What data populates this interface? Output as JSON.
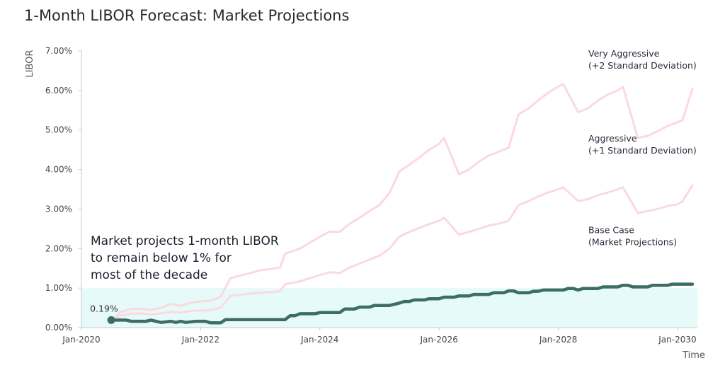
{
  "title": "1-Month LIBOR Forecast: Market Projections",
  "chart_data": {
    "type": "line",
    "title": "1-Month LIBOR Forecast: Market Projections",
    "xlabel": "Time",
    "ylabel": "LIBOR",
    "xlim": [
      "2020-01",
      "2030-05"
    ],
    "ylim": [
      0,
      7
    ],
    "y_ticks": [
      "0.00%",
      "1.00%",
      "2.00%",
      "3.00%",
      "4.00%",
      "5.00%",
      "6.00%",
      "7.00%"
    ],
    "x_ticks": [
      {
        "label": "Jan-2020",
        "date": "2020-01"
      },
      {
        "label": "Jan-2022",
        "date": "2022-01"
      },
      {
        "label": "Jan-2024",
        "date": "2024-01"
      },
      {
        "label": "Jan-2026",
        "date": "2026-01"
      },
      {
        "label": "Jan-2028",
        "date": "2028-01"
      },
      {
        "label": "Jan-2030",
        "date": "2030-01"
      }
    ],
    "shaded_band": {
      "from": 0,
      "to": 1,
      "color": "#e6fafa"
    },
    "grid": false,
    "series": [
      {
        "name": "Very Aggressive (+2 Standard Deviation)",
        "color": "#fadadd",
        "points": [
          [
            "2020-07",
            0.19
          ],
          [
            "2020-09",
            0.4
          ],
          [
            "2020-11",
            0.47
          ],
          [
            "2021-01",
            0.48
          ],
          [
            "2021-03",
            0.45
          ],
          [
            "2021-05",
            0.5
          ],
          [
            "2021-07",
            0.6
          ],
          [
            "2021-09",
            0.55
          ],
          [
            "2021-11",
            0.63
          ],
          [
            "2022-01",
            0.66
          ],
          [
            "2022-03",
            0.68
          ],
          [
            "2022-05",
            0.78
          ],
          [
            "2022-07",
            1.25
          ],
          [
            "2022-09",
            1.32
          ],
          [
            "2022-11",
            1.38
          ],
          [
            "2023-01",
            1.45
          ],
          [
            "2023-03",
            1.48
          ],
          [
            "2023-05",
            1.52
          ],
          [
            "2023-06",
            1.87
          ],
          [
            "2023-09",
            2.0
          ],
          [
            "2023-11",
            2.15
          ],
          [
            "2024-01",
            2.3
          ],
          [
            "2024-03",
            2.43
          ],
          [
            "2024-05",
            2.42
          ],
          [
            "2024-07",
            2.63
          ],
          [
            "2024-09",
            2.78
          ],
          [
            "2024-11",
            2.95
          ],
          [
            "2025-01",
            3.1
          ],
          [
            "2025-03",
            3.4
          ],
          [
            "2025-05",
            3.95
          ],
          [
            "2025-07",
            4.12
          ],
          [
            "2025-09",
            4.3
          ],
          [
            "2025-11",
            4.5
          ],
          [
            "2026-01",
            4.65
          ],
          [
            "2026-02",
            4.8
          ],
          [
            "2026-05",
            3.88
          ],
          [
            "2026-07",
            4.0
          ],
          [
            "2026-09",
            4.2
          ],
          [
            "2026-11",
            4.35
          ],
          [
            "2027-01",
            4.45
          ],
          [
            "2027-03",
            4.55
          ],
          [
            "2027-05",
            5.4
          ],
          [
            "2027-07",
            5.55
          ],
          [
            "2027-09",
            5.75
          ],
          [
            "2027-11",
            5.95
          ],
          [
            "2028-01",
            6.1
          ],
          [
            "2028-02",
            6.16
          ],
          [
            "2028-05",
            5.45
          ],
          [
            "2028-07",
            5.55
          ],
          [
            "2028-09",
            5.75
          ],
          [
            "2028-11",
            5.9
          ],
          [
            "2029-01",
            6.0
          ],
          [
            "2029-02",
            6.1
          ],
          [
            "2029-05",
            4.8
          ],
          [
            "2029-07",
            4.85
          ],
          [
            "2029-09",
            4.97
          ],
          [
            "2029-11",
            5.1
          ],
          [
            "2030-01",
            5.2
          ],
          [
            "2030-02",
            5.25
          ],
          [
            "2030-04",
            6.05
          ]
        ]
      },
      {
        "name": "Aggressive (+1 Standard Deviation)",
        "color": "#fadadd",
        "points": [
          [
            "2020-07",
            0.19
          ],
          [
            "2020-09",
            0.3
          ],
          [
            "2020-11",
            0.35
          ],
          [
            "2021-01",
            0.36
          ],
          [
            "2021-03",
            0.33
          ],
          [
            "2021-05",
            0.36
          ],
          [
            "2021-07",
            0.4
          ],
          [
            "2021-09",
            0.38
          ],
          [
            "2021-11",
            0.42
          ],
          [
            "2022-01",
            0.43
          ],
          [
            "2022-03",
            0.44
          ],
          [
            "2022-05",
            0.5
          ],
          [
            "2022-07",
            0.8
          ],
          [
            "2022-09",
            0.83
          ],
          [
            "2022-11",
            0.86
          ],
          [
            "2023-01",
            0.88
          ],
          [
            "2023-03",
            0.9
          ],
          [
            "2023-05",
            0.92
          ],
          [
            "2023-06",
            1.1
          ],
          [
            "2023-09",
            1.17
          ],
          [
            "2023-11",
            1.25
          ],
          [
            "2024-01",
            1.33
          ],
          [
            "2024-03",
            1.4
          ],
          [
            "2024-05",
            1.38
          ],
          [
            "2024-07",
            1.52
          ],
          [
            "2024-09",
            1.62
          ],
          [
            "2024-11",
            1.72
          ],
          [
            "2025-01",
            1.82
          ],
          [
            "2025-03",
            2.0
          ],
          [
            "2025-05",
            2.3
          ],
          [
            "2025-07",
            2.42
          ],
          [
            "2025-09",
            2.52
          ],
          [
            "2025-11",
            2.62
          ],
          [
            "2026-01",
            2.7
          ],
          [
            "2026-02",
            2.78
          ],
          [
            "2026-05",
            2.35
          ],
          [
            "2026-07",
            2.42
          ],
          [
            "2026-09",
            2.5
          ],
          [
            "2026-11",
            2.58
          ],
          [
            "2027-01",
            2.63
          ],
          [
            "2027-03",
            2.7
          ],
          [
            "2027-05",
            3.1
          ],
          [
            "2027-07",
            3.2
          ],
          [
            "2027-09",
            3.32
          ],
          [
            "2027-11",
            3.42
          ],
          [
            "2028-01",
            3.5
          ],
          [
            "2028-02",
            3.55
          ],
          [
            "2028-05",
            3.2
          ],
          [
            "2028-07",
            3.25
          ],
          [
            "2028-09",
            3.35
          ],
          [
            "2028-11",
            3.42
          ],
          [
            "2029-01",
            3.5
          ],
          [
            "2029-02",
            3.55
          ],
          [
            "2029-05",
            2.9
          ],
          [
            "2029-07",
            2.95
          ],
          [
            "2029-09",
            3.0
          ],
          [
            "2029-11",
            3.08
          ],
          [
            "2030-01",
            3.12
          ],
          [
            "2030-02",
            3.2
          ],
          [
            "2030-04",
            3.6
          ]
        ]
      },
      {
        "name": "Base Case (Market Projections)",
        "color": "#3d6e66",
        "points": [
          [
            "2020-07",
            0.19
          ],
          [
            "2020-10",
            0.19
          ],
          [
            "2020-11",
            0.16
          ],
          [
            "2021-02",
            0.16
          ],
          [
            "2021-03",
            0.19
          ],
          [
            "2021-05",
            0.13
          ],
          [
            "2021-07",
            0.16
          ],
          [
            "2021-08",
            0.13
          ],
          [
            "2021-09",
            0.16
          ],
          [
            "2021-10",
            0.13
          ],
          [
            "2021-12",
            0.16
          ],
          [
            "2022-02",
            0.16
          ],
          [
            "2022-03",
            0.12
          ],
          [
            "2022-05",
            0.12
          ],
          [
            "2022-06",
            0.2
          ],
          [
            "2023-06",
            0.2
          ],
          [
            "2023-07",
            0.3
          ],
          [
            "2023-08",
            0.3
          ],
          [
            "2023-09",
            0.35
          ],
          [
            "2023-12",
            0.35
          ],
          [
            "2024-01",
            0.38
          ],
          [
            "2024-05",
            0.38
          ],
          [
            "2024-06",
            0.47
          ],
          [
            "2024-08",
            0.47
          ],
          [
            "2024-09",
            0.52
          ],
          [
            "2024-11",
            0.52
          ],
          [
            "2024-12",
            0.56
          ],
          [
            "2025-03",
            0.56
          ],
          [
            "2025-05",
            0.62
          ],
          [
            "2025-06",
            0.66
          ],
          [
            "2025-07",
            0.66
          ],
          [
            "2025-08",
            0.7
          ],
          [
            "2025-10",
            0.7
          ],
          [
            "2025-11",
            0.73
          ],
          [
            "2026-01",
            0.73
          ],
          [
            "2026-02",
            0.77
          ],
          [
            "2026-04",
            0.77
          ],
          [
            "2026-05",
            0.8
          ],
          [
            "2026-07",
            0.8
          ],
          [
            "2026-08",
            0.84
          ],
          [
            "2026-11",
            0.84
          ],
          [
            "2026-12",
            0.88
          ],
          [
            "2027-02",
            0.88
          ],
          [
            "2027-03",
            0.93
          ],
          [
            "2027-04",
            0.93
          ],
          [
            "2027-05",
            0.88
          ],
          [
            "2027-07",
            0.88
          ],
          [
            "2027-08",
            0.92
          ],
          [
            "2027-09",
            0.92
          ],
          [
            "2027-10",
            0.95
          ],
          [
            "2028-02",
            0.95
          ],
          [
            "2028-03",
            0.99
          ],
          [
            "2028-04",
            0.99
          ],
          [
            "2028-05",
            0.95
          ],
          [
            "2028-06",
            0.99
          ],
          [
            "2028-09",
            0.99
          ],
          [
            "2028-10",
            1.03
          ],
          [
            "2029-01",
            1.03
          ],
          [
            "2029-02",
            1.07
          ],
          [
            "2029-03",
            1.07
          ],
          [
            "2029-04",
            1.03
          ],
          [
            "2029-07",
            1.03
          ],
          [
            "2029-08",
            1.07
          ],
          [
            "2029-11",
            1.07
          ],
          [
            "2029-12",
            1.1
          ],
          [
            "2030-04",
            1.1
          ]
        ]
      }
    ],
    "annotations": [
      {
        "series": 0,
        "lines": [
          "Very Aggressive",
          "(+2 Standard Deviation)"
        ]
      },
      {
        "series": 1,
        "lines": [
          "Aggressive",
          "(+1 Standard Deviation)"
        ]
      },
      {
        "series": 2,
        "lines": [
          "Base Case",
          "(Market Projections)"
        ]
      }
    ],
    "start_point": {
      "date": "2020-07",
      "value": 0.19,
      "label": "0.19%"
    },
    "callout": [
      "Market projects 1-month LIBOR",
      "to remain below 1% for",
      "most of the decade"
    ]
  }
}
